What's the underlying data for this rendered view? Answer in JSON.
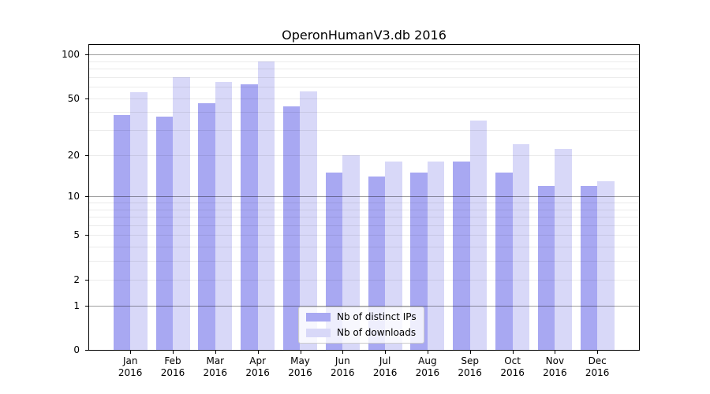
{
  "chart_data": {
    "type": "bar",
    "title": "OperonHumanV3.db 2016",
    "categories": [
      "Jan",
      "Feb",
      "Mar",
      "Apr",
      "May",
      "Jun",
      "Jul",
      "Aug",
      "Sep",
      "Oct",
      "Nov",
      "Dec"
    ],
    "category_year": "2016",
    "series": [
      {
        "name": "Nb of distinct IPs",
        "color": "#a8a8f2",
        "values": [
          38,
          37,
          46,
          62,
          44,
          15,
          14,
          15,
          18,
          15,
          12,
          12
        ]
      },
      {
        "name": "Nb of downloads",
        "color": "#d8d8f8",
        "values": [
          55,
          70,
          65,
          90,
          56,
          20,
          18,
          18,
          35,
          24,
          22,
          13
        ]
      }
    ],
    "y_ticks": [
      0,
      1,
      2,
      5,
      10,
      20,
      50,
      100
    ],
    "y_scale": "symlog log10(1+x)",
    "ylim": [
      0,
      116
    ],
    "grid": {
      "minor": [
        2,
        3,
        4,
        5,
        6,
        7,
        8,
        9,
        20,
        30,
        40,
        50,
        60,
        70,
        80,
        90
      ],
      "major": [
        1,
        10,
        100
      ]
    },
    "legend_position": "lower center"
  }
}
